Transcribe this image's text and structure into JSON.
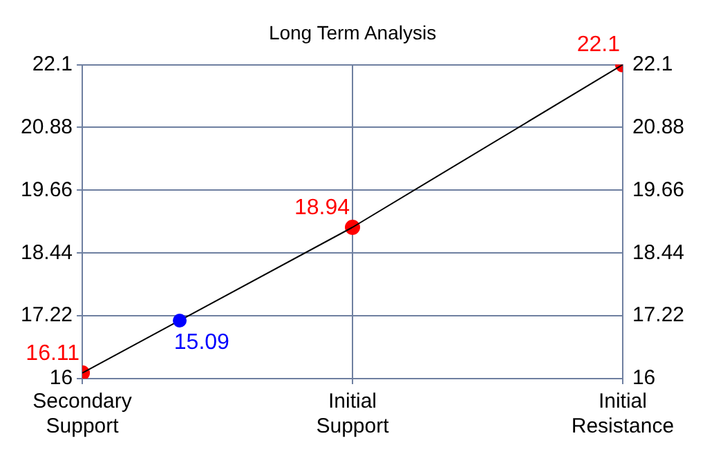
{
  "chart_data": {
    "type": "line",
    "title": "Long Term Analysis",
    "categories": [
      "Secondary Support",
      "Initial Support",
      "Initial Resistance"
    ],
    "ylim": [
      16,
      22.1
    ],
    "yticks": [
      16,
      17.22,
      18.44,
      19.66,
      20.88,
      22.1
    ],
    "y2lim": [
      16,
      22.1
    ],
    "y2ticks": [
      16,
      17.22,
      18.44,
      19.66,
      20.88,
      22.1
    ],
    "grid": true,
    "legend": false,
    "annotations": [
      "15.09"
    ],
    "series": [
      {
        "color": "#000000",
        "marker": "none",
        "values": [
          16.11,
          18.94,
          22.1
        ]
      },
      {
        "type": "scatter",
        "color": "#ff0000",
        "marker": "circle",
        "values": [
          16.11,
          18.94,
          22.1
        ],
        "value_labels": [
          "16.11",
          "18.94",
          "22.1"
        ]
      }
    ]
  }
}
